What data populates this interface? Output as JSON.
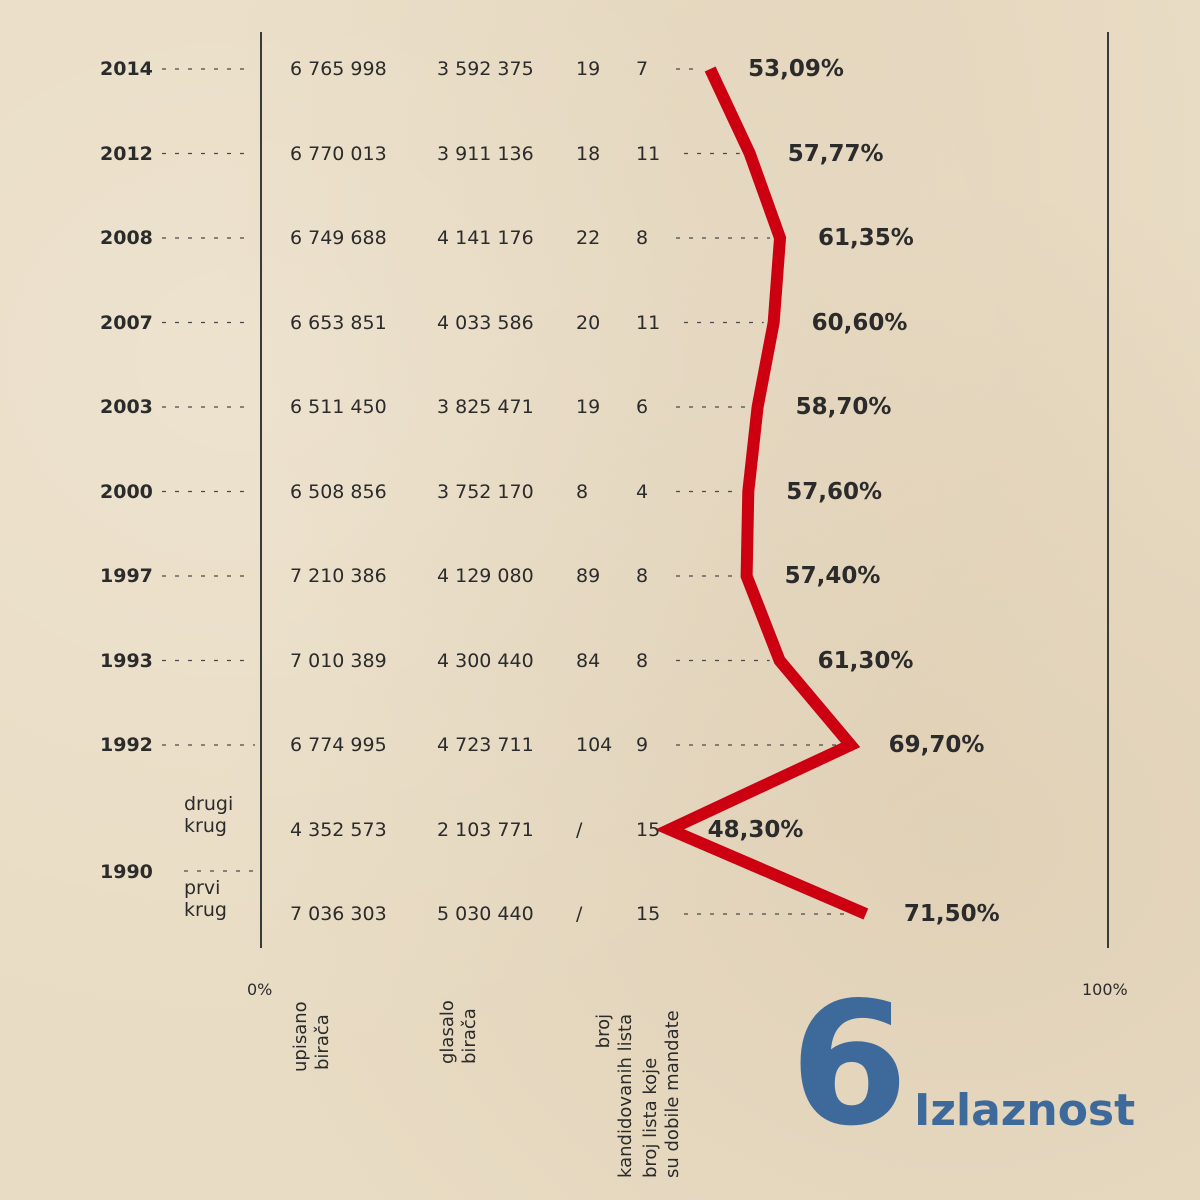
{
  "title": "Izlaznost",
  "number": "6",
  "accent_color": "#3d6a9a",
  "line_color": "#cc0010",
  "axis": {
    "min_label": "0%",
    "max_label": "100%"
  },
  "headers": {
    "registered": [
      "upisano",
      "birača"
    ],
    "voted": [
      "glasalo",
      "birača"
    ],
    "lists": [
      "broj",
      "kandidovanih lista"
    ],
    "mandates": [
      "broj lista koje",
      "su dobile mandate"
    ]
  },
  "rows": [
    {
      "year": "2014",
      "registered": "6 765 998",
      "voted": "3 592 375",
      "lists": "19",
      "mandates": "7",
      "turnout_label": "53,09%"
    },
    {
      "year": "2012",
      "registered": "6 770 013",
      "voted": "3 911 136",
      "lists": "18",
      "mandates": "11",
      "turnout_label": "57,77%"
    },
    {
      "year": "2008",
      "registered": "6 749 688",
      "voted": "4 141 176",
      "lists": "22",
      "mandates": "8",
      "turnout_label": "61,35%"
    },
    {
      "year": "2007",
      "registered": "6 653 851",
      "voted": "4 033 586",
      "lists": "20",
      "mandates": "11",
      "turnout_label": "60,60%"
    },
    {
      "year": "2003",
      "registered": "6 511 450",
      "voted": "3 825 471",
      "lists": "19",
      "mandates": "6",
      "turnout_label": "58,70%"
    },
    {
      "year": "2000",
      "registered": "6 508 856",
      "voted": "3 752 170",
      "lists": "8",
      "mandates": "4",
      "turnout_label": "57,60%"
    },
    {
      "year": "1997",
      "registered": "7 210 386",
      "voted": "4 129 080",
      "lists": "89",
      "mandates": "8",
      "turnout_label": "57,40%"
    },
    {
      "year": "1993",
      "registered": "7 010 389",
      "voted": "4 300 440",
      "lists": "84",
      "mandates": "8",
      "turnout_label": "61,30%"
    },
    {
      "year": "1992",
      "registered": "6 774 995",
      "voted": "4 723 711",
      "lists": "104",
      "mandates": "9",
      "turnout_label": "69,70%"
    },
    {
      "year": "",
      "round": [
        "drugi",
        "krug"
      ],
      "registered": "4 352 573",
      "voted": "2 103 771",
      "lists": "/",
      "mandates": "15",
      "turnout_label": "48,30%"
    },
    {
      "year": "",
      "round": [
        "prvi",
        "krug"
      ],
      "registered": "7 036 303",
      "voted": "5 030 440",
      "lists": "/",
      "mandates": "15",
      "turnout_label": "71,50%"
    }
  ],
  "group_year": "1990",
  "chart_data": {
    "type": "line",
    "x": [
      "2014",
      "2012",
      "2008",
      "2007",
      "2003",
      "2000",
      "1997",
      "1993",
      "1992",
      "1990 drugi krug",
      "1990 prvi krug"
    ],
    "series": [
      {
        "values": [
          53.09,
          57.77,
          61.35,
          60.6,
          58.7,
          57.6,
          57.4,
          61.3,
          69.7,
          48.3,
          71.5
        ]
      }
    ],
    "xlim": [
      0,
      100
    ],
    "orientation": "horizontal",
    "grid": false
  }
}
